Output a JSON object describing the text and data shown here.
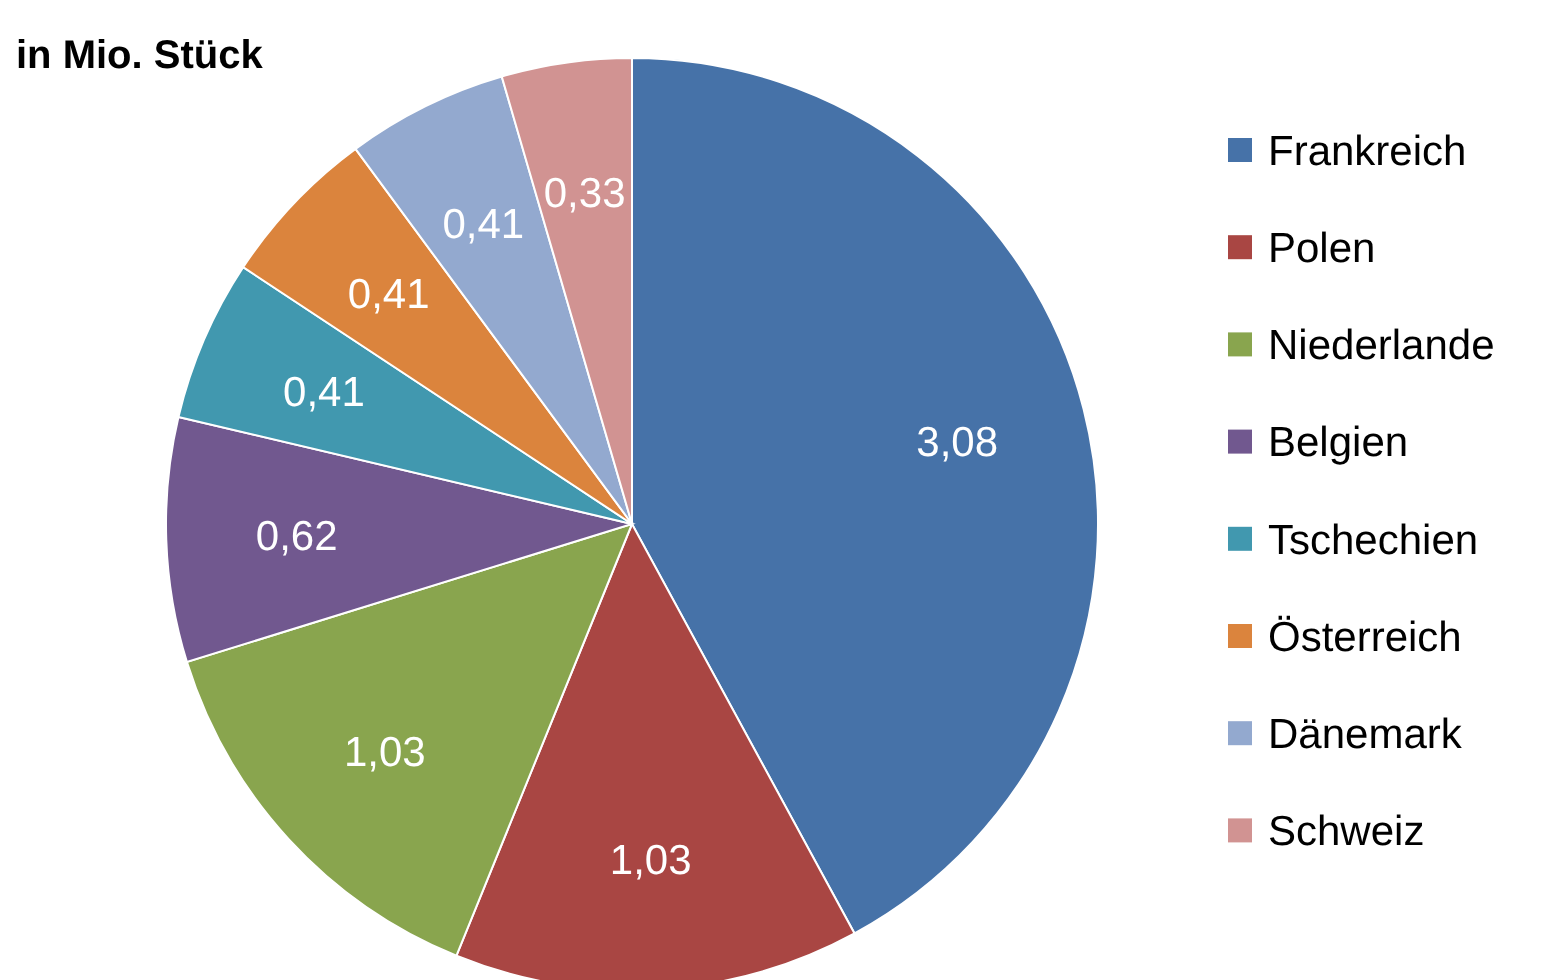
{
  "chart_data": {
    "type": "pie",
    "title": "in Mio. Stück",
    "categories": [
      "Frankreich",
      "Polen",
      "Niederlande",
      "Belgien",
      "Tschechien",
      "Österreich",
      "Dänemark",
      "Schweiz"
    ],
    "values": [
      3.08,
      1.03,
      1.03,
      0.62,
      0.41,
      0.41,
      0.41,
      0.33
    ],
    "value_labels": [
      "3,08",
      "1,03",
      "1,03",
      "0,62",
      "0,41",
      "0,41",
      "0,41",
      "0,33"
    ],
    "colors": [
      "#4672a8",
      "#a94643",
      "#89a54e",
      "#71588f",
      "#4198af",
      "#db843d",
      "#93a9cf",
      "#d19392"
    ],
    "legend": "right"
  }
}
